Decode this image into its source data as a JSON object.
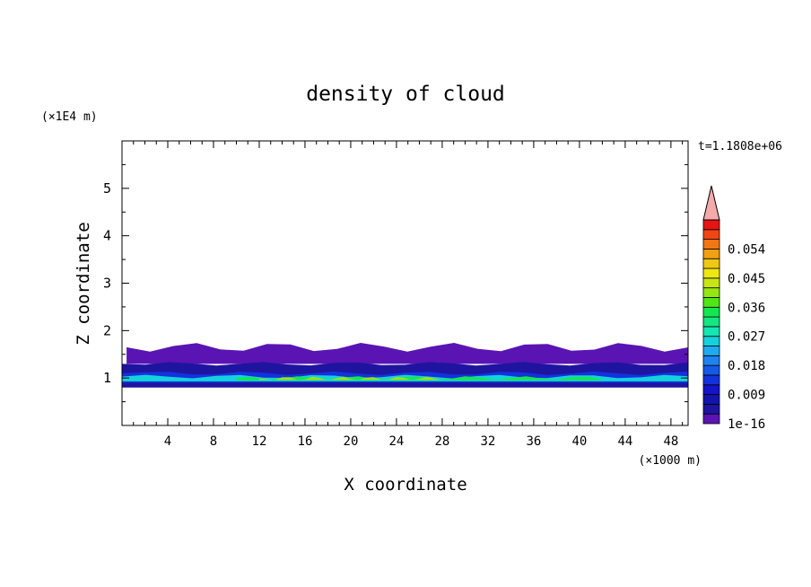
{
  "chart_data": {
    "type": "heatmap",
    "title": "density of cloud",
    "xlabel": "X coordinate",
    "ylabel": "Z coordinate",
    "x_unit": "(×1000 m)",
    "y_unit": "(×1E4 m)",
    "time_label": "t=1.1808e+06",
    "xlim": [
      0,
      49.5
    ],
    "ylim": [
      0,
      6
    ],
    "x_ticks": [
      "4",
      "8",
      "12",
      "16",
      "20",
      "24",
      "28",
      "32",
      "36",
      "40",
      "44",
      "48"
    ],
    "y_ticks": [
      "1",
      "2",
      "3",
      "4",
      "5"
    ],
    "colorbar_labels": [
      "1e-16",
      "0.009",
      "0.018",
      "0.027",
      "0.036",
      "0.045",
      "0.054"
    ],
    "colorbar_levels": [
      1e-16,
      0.003,
      0.006,
      0.009,
      0.012,
      0.015,
      0.018,
      0.021,
      0.024,
      0.027,
      0.03,
      0.033,
      0.036,
      0.039,
      0.042,
      0.045,
      0.048,
      0.051,
      0.054,
      0.057,
      0.06
    ],
    "colorbar_colors": [
      "#5a14b4",
      "#1e14a0",
      "#1414aa",
      "#1414c8",
      "#1432dc",
      "#145ae6",
      "#1e82f0",
      "#1eaaf0",
      "#14d2dc",
      "#14e6b4",
      "#14e682",
      "#14e650",
      "#50e614",
      "#96e614",
      "#c8e614",
      "#f0e614",
      "#f0c814",
      "#f0a014",
      "#f07814",
      "#f04614",
      "#e61414",
      "#f4aaaa"
    ],
    "contour_regions": [
      {
        "level": 1e-16,
        "x_min": 0.4,
        "x_max": 49.5,
        "z_min": 1.3,
        "z_max": 1.65
      },
      {
        "level": 0.003,
        "x_min": 0,
        "x_max": 49.5,
        "z_min": 0.8,
        "z_max": 1.3
      },
      {
        "level": 0.012,
        "x_min": 0,
        "x_max": 49.5,
        "z_min": 0.9,
        "z_max": 1.1
      },
      {
        "level": 0.024,
        "x_min": 0,
        "x_max": 49.5,
        "z_min": 0.93,
        "z_max": 1.03
      },
      {
        "level": 0.033,
        "x_min": 10,
        "x_max": 42,
        "z_min": 0.95,
        "z_max": 1.0
      },
      {
        "level": 0.039,
        "x_min": 12,
        "x_max": 28,
        "z_min": 0.96,
        "z_max": 0.99
      }
    ]
  }
}
